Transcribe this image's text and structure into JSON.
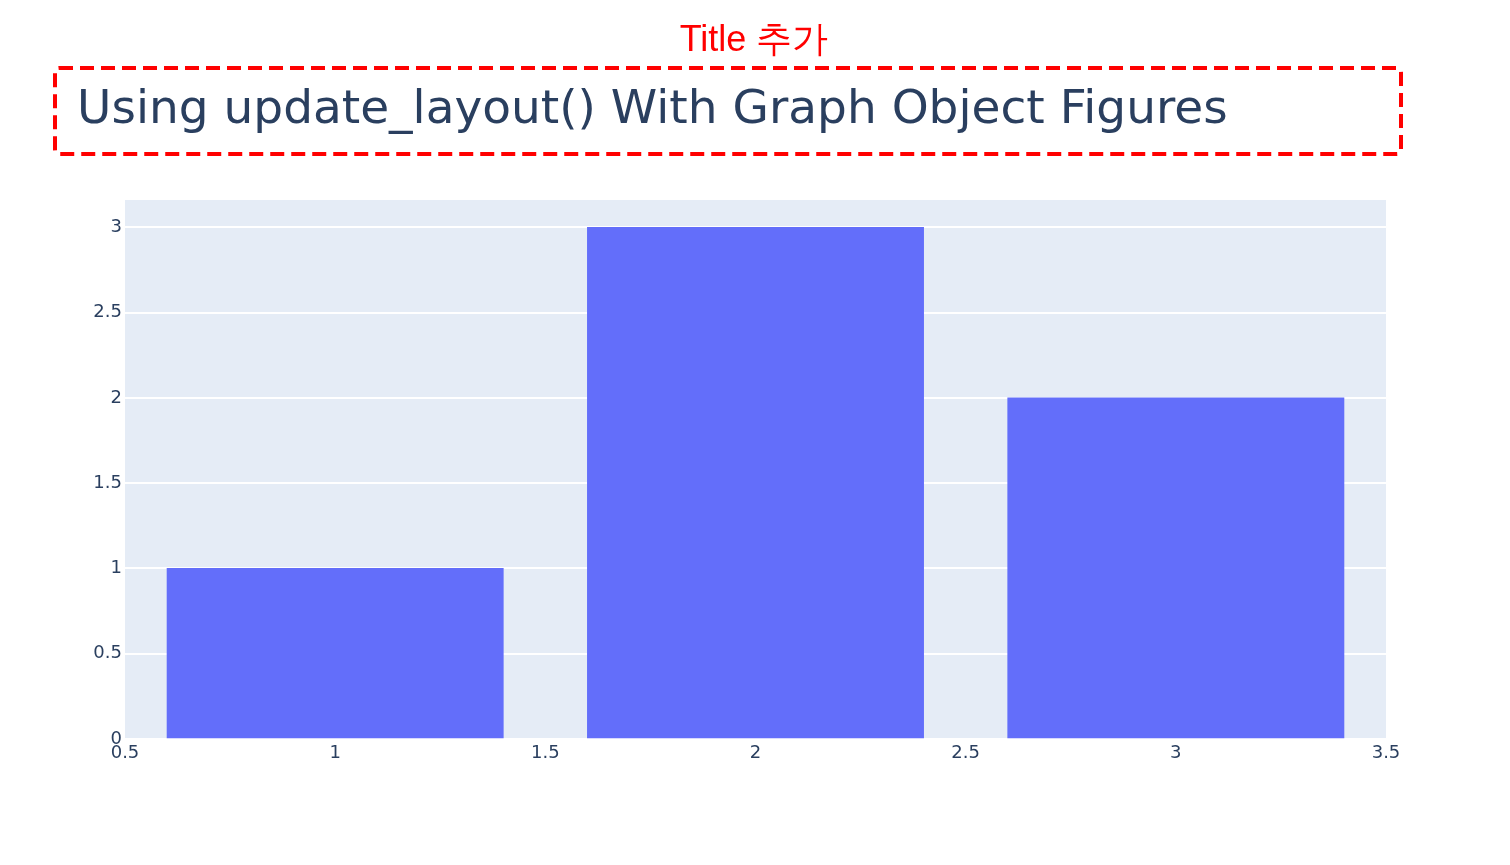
{
  "chart_data": {
    "type": "bar",
    "title": "Using update_layout() With Graph Object Figures",
    "annotations": [
      "Title 추가"
    ],
    "x": [
      1,
      2,
      3
    ],
    "values": [
      1,
      3,
      2
    ],
    "color": "#636efa",
    "xlim": [
      0.5,
      3.5
    ],
    "xticks": [
      0.5,
      1,
      1.5,
      2,
      2.5,
      3,
      3.5
    ],
    "ylim": [
      0,
      3.16
    ],
    "yticks": [
      0,
      0.5,
      1,
      1.5,
      2,
      2.5,
      3
    ],
    "grid": "y"
  }
}
